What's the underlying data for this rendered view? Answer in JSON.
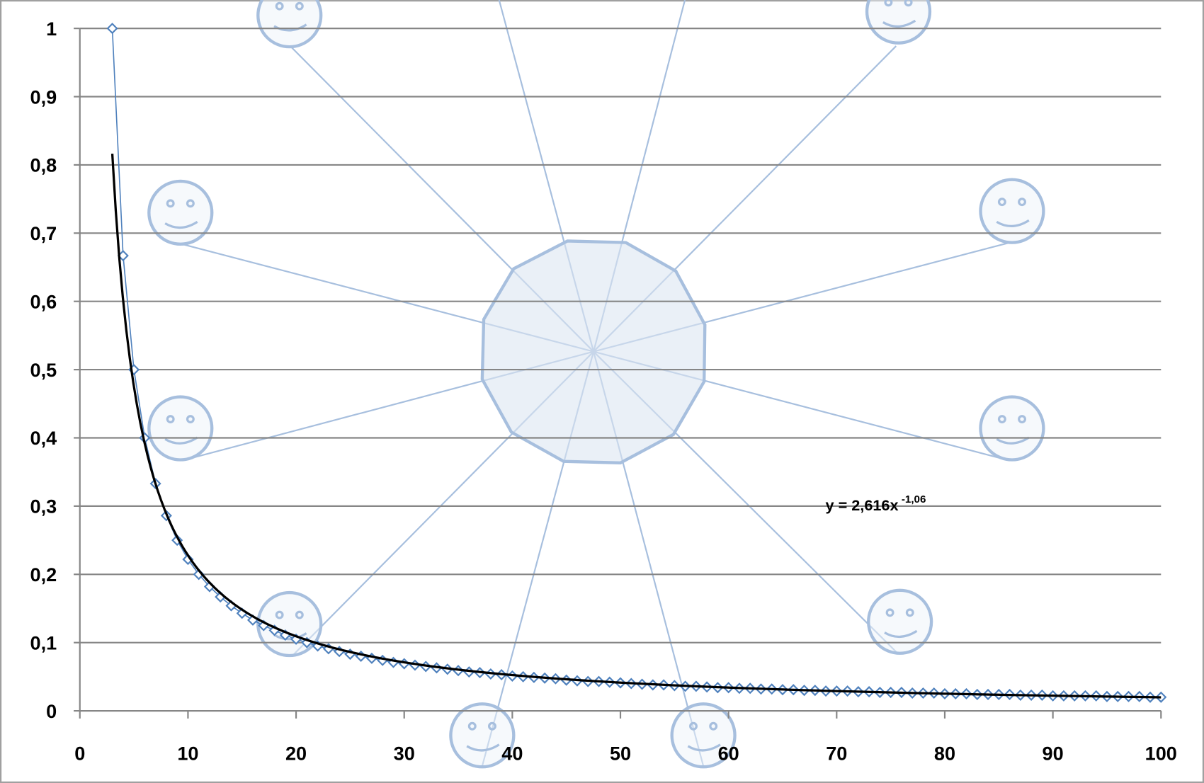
{
  "chart_data": {
    "type": "scatter",
    "x": [
      3,
      4,
      5,
      6,
      7,
      8,
      9,
      10,
      11,
      12,
      13,
      14,
      15,
      16,
      17,
      18,
      19,
      20,
      21,
      22,
      23,
      24,
      25,
      26,
      27,
      28,
      29,
      30,
      31,
      32,
      33,
      34,
      35,
      36,
      37,
      38,
      39,
      40,
      41,
      42,
      43,
      44,
      45,
      46,
      47,
      48,
      49,
      50,
      51,
      52,
      53,
      54,
      55,
      56,
      57,
      58,
      59,
      60,
      61,
      62,
      63,
      64,
      65,
      66,
      67,
      68,
      69,
      70,
      71,
      72,
      73,
      74,
      75,
      76,
      77,
      78,
      79,
      80,
      81,
      82,
      83,
      84,
      85,
      86,
      87,
      88,
      89,
      90,
      91,
      92,
      93,
      94,
      95,
      96,
      97,
      98,
      99,
      100
    ],
    "series": [
      {
        "color": "#4f81bd",
        "values": [
          1,
          0.667,
          0.5,
          0.4,
          0.333,
          0.286,
          0.25,
          0.222,
          0.2,
          0.182,
          0.167,
          0.154,
          0.143,
          0.133,
          0.125,
          0.118,
          0.111,
          0.105,
          0.1,
          0.095,
          0.091,
          0.087,
          0.083,
          0.08,
          0.077,
          0.074,
          0.071,
          0.069,
          0.067,
          0.065,
          0.063,
          0.061,
          0.059,
          0.057,
          0.056,
          0.054,
          0.053,
          0.051,
          0.05,
          0.049,
          0.048,
          0.047,
          0.045,
          0.044,
          0.043,
          0.043,
          0.042,
          0.041,
          0.04,
          0.039,
          0.038,
          0.038,
          0.037,
          0.036,
          0.036,
          0.035,
          0.034,
          0.034,
          0.033,
          0.033,
          0.032,
          0.032,
          0.031,
          0.031,
          0.03,
          0.03,
          0.029,
          0.029,
          0.029,
          0.028,
          0.028,
          0.027,
          0.027,
          0.027,
          0.026,
          0.026,
          0.026,
          0.025,
          0.025,
          0.025,
          0.024,
          0.024,
          0.024,
          0.024,
          0.023,
          0.023,
          0.023,
          0.022,
          0.022,
          0.022,
          0.022,
          0.022,
          0.021,
          0.021,
          0.021,
          0.021,
          0.02,
          0.02
        ]
      }
    ],
    "trendline": {
      "type": "power",
      "color": "#000000",
      "coefficient": 2.616,
      "exponent": -1.06,
      "label": "y = 2,616x",
      "exponent_label": "-1,06"
    },
    "xlim": [
      0,
      100
    ],
    "xticks": [
      0,
      10,
      20,
      30,
      40,
      50,
      60,
      70,
      80,
      90,
      100
    ],
    "ylim": [
      0,
      1
    ],
    "yticks": [
      0,
      {
        "value": 0.1,
        "label": "0,1"
      },
      {
        "value": 0.2,
        "label": "0,2"
      },
      {
        "value": 0.3,
        "label": "0,3"
      },
      {
        "value": 0.4,
        "label": "0,4"
      },
      {
        "value": 0.5,
        "label": "0,5"
      },
      {
        "value": 0.6,
        "label": "0,6"
      },
      {
        "value": 0.7,
        "label": "0,7"
      },
      {
        "value": 0.8,
        "label": "0,8"
      },
      {
        "value": 0.9,
        "label": "0,9"
      },
      1
    ],
    "grid": true
  }
}
